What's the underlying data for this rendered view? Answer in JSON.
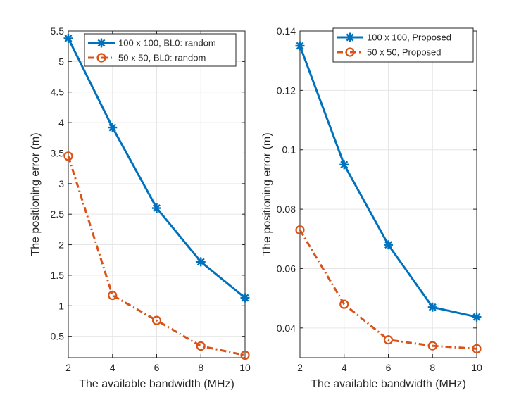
{
  "chart_data": [
    {
      "type": "line",
      "panel": "left",
      "xlabel": "The available bandwidth (MHz)",
      "ylabel": "The positioning error (m)",
      "xlim": [
        2,
        10
      ],
      "ylim": [
        0.15,
        5.5
      ],
      "xticks": [
        2,
        4,
        6,
        8,
        10
      ],
      "xtick_labels": [
        "2",
        "4",
        "6",
        "8",
        "10"
      ],
      "yticks": [
        0.5,
        1,
        1.5,
        2,
        2.5,
        3,
        3.5,
        4,
        4.5,
        5,
        5.5
      ],
      "ytick_labels": [
        "0.5",
        "1",
        "1.5",
        "2",
        "2.5",
        "3",
        "3.5",
        "4",
        "4.5",
        "5",
        "5.5"
      ],
      "grid": true,
      "legend_position": "top-right",
      "x": [
        2,
        4,
        6,
        8,
        10
      ],
      "series": [
        {
          "name": "100 x 100, BL0: random",
          "values": [
            5.38,
            3.92,
            2.6,
            1.72,
            1.13
          ],
          "color": "#0072bd",
          "marker": "asterisk",
          "line_style": "solid"
        },
        {
          "name": "50 x 50, BL0: random",
          "values": [
            3.45,
            1.17,
            0.76,
            0.34,
            0.19
          ],
          "color": "#d95319",
          "marker": "circle",
          "line_style": "dash-dot"
        }
      ]
    },
    {
      "type": "line",
      "panel": "right",
      "xlabel": "The available bandwidth (MHz)",
      "ylabel": "The positioning error (m)",
      "xlim": [
        2,
        10
      ],
      "ylim": [
        0.03,
        0.14
      ],
      "xticks": [
        2,
        4,
        6,
        8,
        10
      ],
      "xtick_labels": [
        "2",
        "4",
        "6",
        "8",
        "10"
      ],
      "yticks": [
        0.04,
        0.06,
        0.08,
        0.1,
        0.12,
        0.14
      ],
      "ytick_labels": [
        "0.04",
        "0.06",
        "0.08",
        "0.1",
        "0.12",
        "0.14"
      ],
      "grid": true,
      "legend_position": "top-right",
      "x": [
        2,
        4,
        6,
        8,
        10
      ],
      "series": [
        {
          "name": "100 x 100, Proposed",
          "values": [
            0.135,
            0.095,
            0.068,
            0.047,
            0.0437
          ],
          "color": "#0072bd",
          "marker": "asterisk",
          "line_style": "solid"
        },
        {
          "name": "50 x 50, Proposed",
          "values": [
            0.073,
            0.048,
            0.036,
            0.034,
            0.033
          ],
          "color": "#d95319",
          "marker": "circle",
          "line_style": "dash-dot"
        }
      ]
    }
  ]
}
